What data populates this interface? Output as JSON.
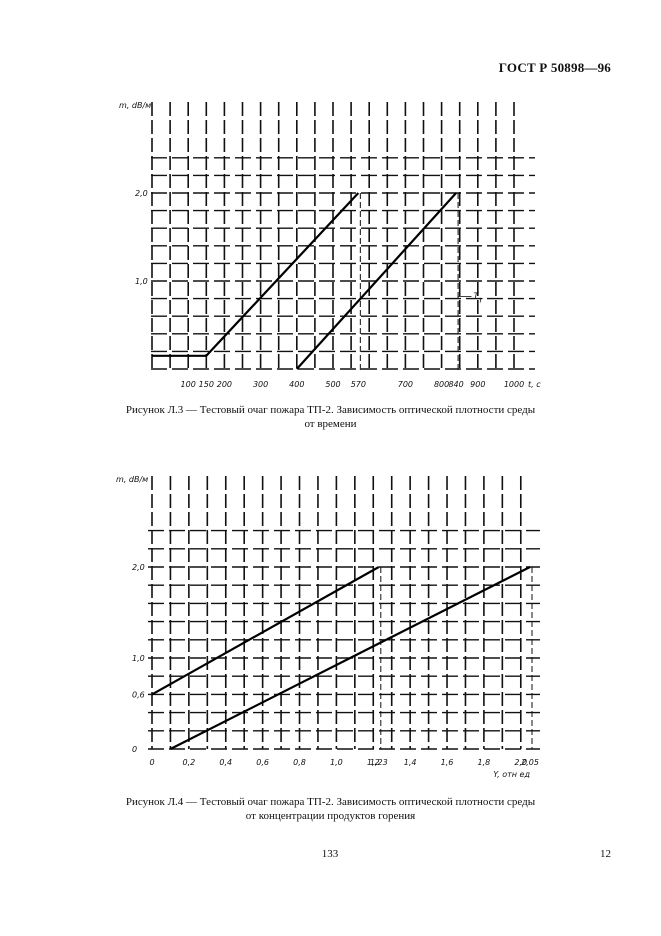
{
  "header": {
    "doc_code": "ГОСТ Р 50898—96"
  },
  "footer": {
    "page_number": "133",
    "sheet_number": "12"
  },
  "chart_data": [
    {
      "type": "line",
      "ylabel": "m, dB/м",
      "xlabel": "t, с",
      "xlim": [
        0,
        1000
      ],
      "ylim": [
        0,
        2.4
      ],
      "x_ticks": [
        {
          "value": 100,
          "label": "100"
        },
        {
          "value": 150,
          "label": "150"
        },
        {
          "value": 200,
          "label": "200"
        },
        {
          "value": 300,
          "label": "300"
        },
        {
          "value": 400,
          "label": "400"
        },
        {
          "value": 500,
          "label": "500"
        },
        {
          "value": 570,
          "label": "570"
        },
        {
          "value": 700,
          "label": "700"
        },
        {
          "value": 800,
          "label": "800"
        },
        {
          "value": 840,
          "label": "840"
        },
        {
          "value": 900,
          "label": "900"
        },
        {
          "value": 1000,
          "label": "1000"
        }
      ],
      "y_ticks": [
        {
          "value": 1.0,
          "label": "1,0"
        },
        {
          "value": 2.0,
          "label": "2,0"
        }
      ],
      "grid": true,
      "series": [
        {
          "points": [
            [
              0,
              0.15
            ],
            [
              150,
              0.15
            ],
            [
              570,
              2.0
            ]
          ]
        },
        {
          "points": [
            [
              400,
              0
            ],
            [
              840,
              2.0
            ]
          ]
        }
      ],
      "guides": [
        570,
        840
      ],
      "annotations": [
        {
          "text": "T",
          "sub": "r",
          "x": 855,
          "y": 0.8
        }
      ],
      "caption": {
        "line1": "Рисунок Л.3 — Тестовый очаг пожара ТП-2. Зависимость оптической плотности среды",
        "line2": "от времени"
      }
    },
    {
      "type": "line",
      "ylabel": "m, dB/м",
      "xlabel": "Y, отн ед",
      "xlim": [
        0,
        2.05
      ],
      "ylim": [
        0,
        2.4
      ],
      "x_ticks": [
        {
          "value": 0,
          "label": "0"
        },
        {
          "value": 0.2,
          "label": "0,2"
        },
        {
          "value": 0.4,
          "label": "0,4"
        },
        {
          "value": 0.6,
          "label": "0,6"
        },
        {
          "value": 0.8,
          "label": "0,8"
        },
        {
          "value": 1.0,
          "label": "1,0"
        },
        {
          "value": 1.2,
          "label": "1,2"
        },
        {
          "value": 1.23,
          "label": "1,23"
        },
        {
          "value": 1.4,
          "label": "1,4"
        },
        {
          "value": 1.6,
          "label": "1,6"
        },
        {
          "value": 1.8,
          "label": "1,8"
        },
        {
          "value": 2.0,
          "label": "2,0"
        },
        {
          "value": 2.05,
          "label": "2,05"
        }
      ],
      "y_ticks": [
        {
          "value": 0,
          "label": "0"
        },
        {
          "value": 0.6,
          "label": "0,6"
        },
        {
          "value": 1.0,
          "label": "1,0"
        },
        {
          "value": 2.0,
          "label": "2,0"
        }
      ],
      "grid": true,
      "series": [
        {
          "points": [
            [
              0,
              0.6
            ],
            [
              1.23,
              2.0
            ]
          ]
        },
        {
          "points": [
            [
              0.1,
              0
            ],
            [
              2.05,
              2.0
            ]
          ]
        }
      ],
      "guides": [
        1.23,
        2.05
      ],
      "caption": {
        "line1": "Рисунок Л.4 — Тестовый очаг пожара ТП-2. Зависимость оптической плотности среды",
        "line2": "от концентрации продуктов горения"
      }
    }
  ]
}
